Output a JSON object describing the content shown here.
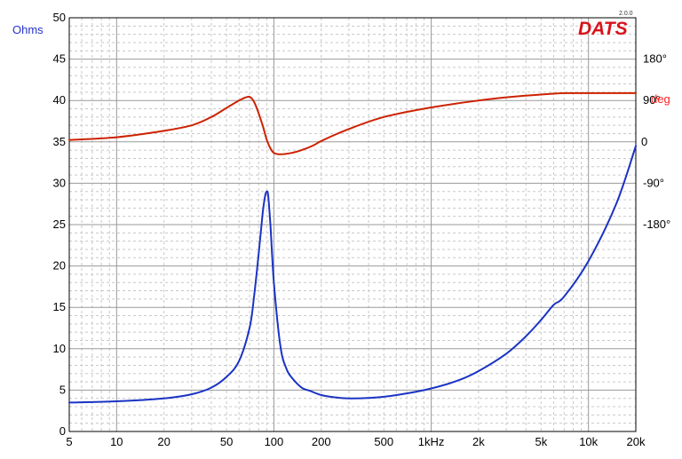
{
  "chart_data": {
    "type": "line",
    "x_scale": "log",
    "xlim": [
      5,
      20000
    ],
    "x_ticks": [
      "5",
      "10",
      "20",
      "50",
      "100",
      "200",
      "500",
      "1kHz",
      "2k",
      "5k",
      "10k",
      "20k"
    ],
    "left_axis": {
      "label": "Ohms",
      "label_color": "#2233cc",
      "ylim": [
        0,
        50
      ],
      "ticks": [
        "0",
        "5",
        "10",
        "15",
        "20",
        "25",
        "30",
        "35",
        "40",
        "45",
        "50"
      ]
    },
    "right_axis": {
      "label": "deg",
      "label_color": "#ff2222",
      "ylim": [
        -630,
        270
      ],
      "ticks": [
        "180°",
        "90°",
        "0",
        "-90°",
        "-180°"
      ]
    },
    "grid": true,
    "logo": "DATS",
    "version": "2.0.0",
    "series": [
      {
        "axis": "left",
        "color": "#1a33c4",
        "x": [
          5,
          10,
          20,
          30,
          40,
          50,
          60,
          70,
          75,
          80,
          85,
          88,
          90,
          92,
          95,
          100,
          110,
          120,
          130,
          150,
          170,
          200,
          250,
          300,
          400,
          500,
          700,
          1000,
          1500,
          2000,
          3000,
          4000,
          5000,
          6000,
          7000,
          10000,
          15000,
          20000
        ],
        "y": [
          3.5,
          3.65,
          4.0,
          4.5,
          5.3,
          6.6,
          8.5,
          12.5,
          16.5,
          21.5,
          26.5,
          28.5,
          29.0,
          28.5,
          25.0,
          18.0,
          10.3,
          7.6,
          6.5,
          5.3,
          4.9,
          4.4,
          4.1,
          4.0,
          4.05,
          4.2,
          4.6,
          5.2,
          6.2,
          7.3,
          9.4,
          11.5,
          13.5,
          15.3,
          16.3,
          20.6,
          27.5,
          34.5
        ]
      },
      {
        "axis": "right",
        "color": "#cc2200",
        "x": [
          5,
          10,
          20,
          30,
          40,
          50,
          60,
          68,
          72,
          76,
          80,
          85,
          90,
          95,
          100,
          110,
          130,
          150,
          180,
          200,
          300,
          500,
          1000,
          2000,
          3000,
          5000,
          7000,
          10000,
          20000
        ],
        "y": [
          4,
          10,
          24,
          36,
          54,
          74,
          90,
          98,
          95,
          82,
          62,
          35,
          5,
          -14,
          -24,
          -27,
          -24,
          -18,
          -7,
          2,
          28,
          54,
          75,
          90,
          97,
          103,
          106,
          106,
          106
        ]
      }
    ]
  }
}
